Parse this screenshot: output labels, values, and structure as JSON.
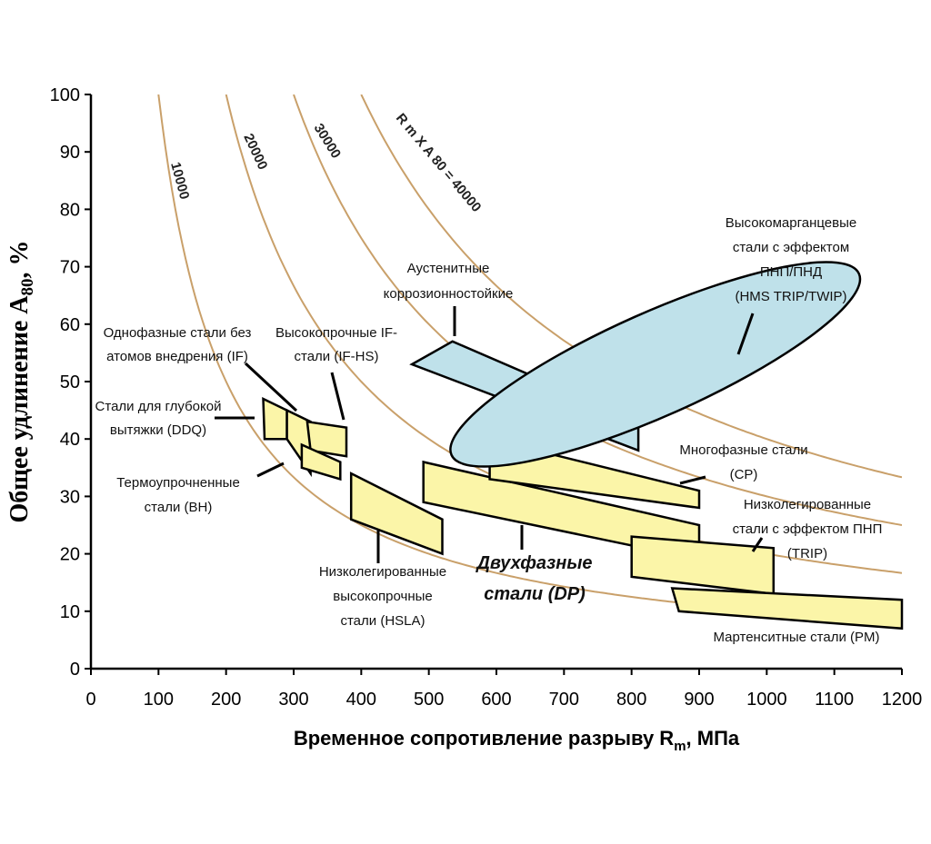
{
  "chart_data": {
    "type": "area",
    "title": "",
    "xlabel": "Временное сопротивление разрыву R",
    "xlabel_sub": "m",
    "xlabel_tail": ", МПа",
    "ylabel": "Общее удлинение A",
    "ylabel_sub": "80",
    "ylabel_tail": ", %",
    "xlim": [
      0,
      1200
    ],
    "ylim": [
      0,
      100
    ],
    "x_ticks": [
      "0",
      "100",
      "200",
      "300",
      "400",
      "500",
      "600",
      "700",
      "800",
      "900",
      "1000",
      "1100",
      "1200"
    ],
    "y_ticks": [
      "0",
      "10",
      "20",
      "30",
      "40",
      "50",
      "60",
      "70",
      "80",
      "90",
      "100"
    ],
    "isocurves": [
      {
        "name": "10000",
        "label": "10000",
        "product": 10000
      },
      {
        "name": "20000",
        "label": "20000",
        "product": 20000
      },
      {
        "name": "30000",
        "label": "30000",
        "product": 30000
      },
      {
        "name": "40000",
        "label": "R m X A 80 = 40000",
        "product": 40000
      }
    ],
    "regions": [
      {
        "name": "DDQ",
        "color": "#fbf5a8",
        "points": [
          [
            255,
            47
          ],
          [
            290,
            45
          ],
          [
            290,
            40
          ],
          [
            257,
            40
          ]
        ]
      },
      {
        "name": "IF",
        "color": "#fbf5a8",
        "points": [
          [
            290,
            45
          ],
          [
            325,
            43
          ],
          [
            325,
            34
          ],
          [
            290,
            40
          ]
        ]
      },
      {
        "name": "IF-HS",
        "color": "#fbf5a8",
        "points": [
          [
            320,
            43
          ],
          [
            378,
            42
          ],
          [
            378,
            37
          ],
          [
            325,
            38
          ]
        ]
      },
      {
        "name": "BH",
        "color": "#fbf5a8",
        "points": [
          [
            312,
            39
          ],
          [
            369,
            36
          ],
          [
            369,
            33
          ],
          [
            312,
            35
          ]
        ]
      },
      {
        "name": "HSLA",
        "color": "#fbf5a8",
        "points": [
          [
            385,
            34
          ],
          [
            520,
            26
          ],
          [
            520,
            20
          ],
          [
            385,
            26
          ]
        ]
      },
      {
        "name": "DP",
        "color": "#fbf5a8",
        "points": [
          [
            492,
            36
          ],
          [
            900,
            25
          ],
          [
            900,
            19
          ],
          [
            492,
            29
          ]
        ]
      },
      {
        "name": "CP",
        "color": "#fbf5a8",
        "points": [
          [
            590,
            40
          ],
          [
            900,
            31
          ],
          [
            900,
            28
          ],
          [
            590,
            33
          ]
        ]
      },
      {
        "name": "TRIP",
        "color": "#fbf5a8",
        "points": [
          [
            800,
            23
          ],
          [
            1010,
            21
          ],
          [
            1010,
            13
          ],
          [
            800,
            16
          ]
        ]
      },
      {
        "name": "PM",
        "color": "#fbf5a8",
        "points": [
          [
            860,
            14
          ],
          [
            1200,
            12
          ],
          [
            1200,
            7
          ],
          [
            870,
            10
          ]
        ]
      },
      {
        "name": "Austenitic",
        "color": "#bfe1ea",
        "points": [
          [
            475,
            53
          ],
          [
            535,
            57
          ],
          [
            810,
            43
          ],
          [
            810,
            38
          ]
        ]
      },
      {
        "name": "HMS TRIP/TWIP",
        "color": "#bfe1ea",
        "ellipse": {
          "cx": 835,
          "cy": 53,
          "rx": 330,
          "ry": 9,
          "angle_deg": -26
        }
      }
    ],
    "annotations": [
      {
        "name": "IF",
        "lines": [
          "Однофазные стали без",
          "атомов внедрения (IF)"
        ]
      },
      {
        "name": "IF-HS",
        "lines": [
          "Высокопрочные IF-",
          "стали (IF-HS)"
        ]
      },
      {
        "name": "DDQ",
        "lines": [
          "Стали для глубокой",
          "вытяжки (DDQ)"
        ]
      },
      {
        "name": "BH",
        "lines": [
          "Термоупрочненные",
          "стали (BH)"
        ]
      },
      {
        "name": "HSLA",
        "lines": [
          "Низколегированные",
          "высокопрочные",
          "стали (HSLA)"
        ]
      },
      {
        "name": "DP",
        "lines": [
          "Двухфазные",
          "стали (DP)"
        ]
      },
      {
        "name": "Austenitic",
        "lines": [
          "Аустенитные",
          "коррозионностойкие"
        ]
      },
      {
        "name": "HMS",
        "lines": [
          "Высокомарганцевые",
          "стали с эффектом",
          "ПНП/ПНД",
          "(HMS TRIP/TWIP)"
        ]
      },
      {
        "name": "CP",
        "lines": [
          "Многофазные стали",
          "(CP)"
        ]
      },
      {
        "name": "TRIP",
        "lines": [
          "Низколегированные",
          "стали с эффектом ПНП",
          "(TRIP)"
        ]
      },
      {
        "name": "PM",
        "lines": [
          "Мартенситные стали (PM)"
        ]
      }
    ]
  }
}
